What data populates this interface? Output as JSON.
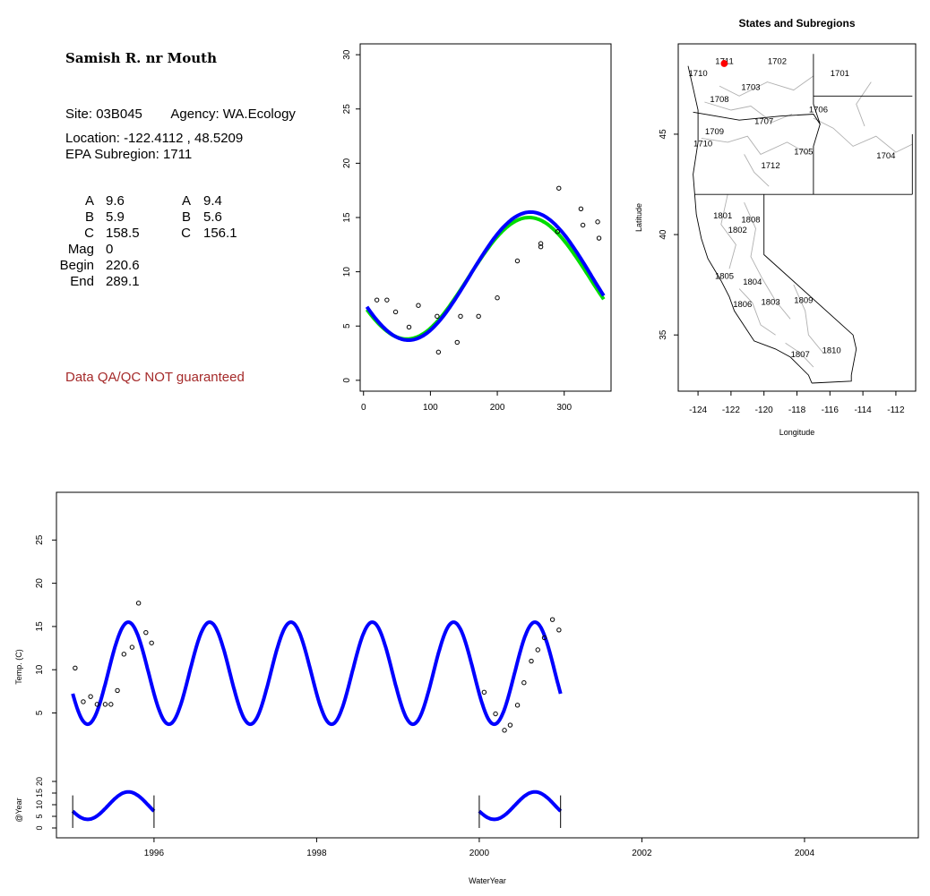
{
  "site": {
    "title": "Samish R. nr Mouth",
    "site_label": "Site:",
    "site_id": "03B045",
    "agency_label": "Agency:",
    "agency": "WA.Ecology",
    "location_label": "Location:",
    "location": "-122.4112 , 48.5209",
    "subregion_label": "EPA Subregion:",
    "subregion": "1711"
  },
  "coefficients": {
    "left": [
      {
        "label": "A",
        "value": "9.6"
      },
      {
        "label": "B",
        "value": "5.9"
      },
      {
        "label": "C",
        "value": "158.5"
      },
      {
        "label": "Mag",
        "value": "0"
      },
      {
        "label": "Begin",
        "value": "220.6"
      },
      {
        "label": "End",
        "value": "289.1"
      }
    ],
    "right": [
      {
        "label": "A",
        "value": "9.4"
      },
      {
        "label": "B",
        "value": "5.6"
      },
      {
        "label": "C",
        "value": "156.1"
      }
    ]
  },
  "qa_note": "Data QA/QC NOT guaranteed",
  "colors": {
    "fit_primary": "#0000ff",
    "fit_secondary": "#00dd00",
    "note": "#a52a2a",
    "site_marker": "#ff0000"
  },
  "chart_data": [
    {
      "type": "scatter",
      "name": "seasonal-fit",
      "xlim": [
        -5,
        370
      ],
      "ylim": [
        -1,
        31
      ],
      "x_ticks": [
        0,
        100,
        200,
        300
      ],
      "y_ticks": [
        0,
        5,
        10,
        15,
        20,
        25,
        30
      ],
      "points": [
        [
          20,
          7.4
        ],
        [
          35,
          7.4
        ],
        [
          48,
          6.3
        ],
        [
          68,
          4.9
        ],
        [
          82,
          6.9
        ],
        [
          110,
          5.9
        ],
        [
          112,
          2.6
        ],
        [
          140,
          3.5
        ],
        [
          145,
          5.9
        ],
        [
          172,
          5.9
        ],
        [
          200,
          7.6
        ],
        [
          230,
          11.0
        ],
        [
          265,
          12.6
        ],
        [
          265,
          12.3
        ],
        [
          290,
          13.7
        ],
        [
          292,
          17.7
        ],
        [
          325,
          15.8
        ],
        [
          328,
          14.3
        ],
        [
          350,
          14.6
        ],
        [
          352,
          13.1
        ]
      ],
      "series": [
        {
          "color": "#00dd00",
          "A": 9.4,
          "B": 5.6,
          "C": 156.1
        },
        {
          "color": "#0000ff",
          "A": 9.6,
          "B": 5.9,
          "C": 158.5
        }
      ],
      "fit_range": [
        5,
        360
      ]
    },
    {
      "type": "map",
      "title": "States and Subregions",
      "xlabel": "Longitude",
      "ylabel": "Latitude",
      "xlim": [
        -125.2,
        -110.8
      ],
      "ylim": [
        32.2,
        49.5
      ],
      "x_ticks": [
        -124,
        -122,
        -120,
        -118,
        -116,
        -114,
        -112
      ],
      "y_ticks": [
        35,
        40,
        45
      ],
      "site": [
        -122.4112,
        48.5209
      ],
      "region_labels": [
        {
          "label": "1702",
          "lon": -119.2,
          "lat": 48.5
        },
        {
          "label": "1701",
          "lon": -115.4,
          "lat": 47.9
        },
        {
          "label": "1711",
          "lon": -122.4,
          "lat": 48.5
        },
        {
          "label": "1710",
          "lon": -124.0,
          "lat": 47.9
        },
        {
          "label": "1703",
          "lon": -120.8,
          "lat": 47.2
        },
        {
          "label": "1708",
          "lon": -122.7,
          "lat": 46.6
        },
        {
          "label": "1706",
          "lon": -116.7,
          "lat": 46.1
        },
        {
          "label": "1707",
          "lon": -120.0,
          "lat": 45.5
        },
        {
          "label": "1709",
          "lon": -123.0,
          "lat": 45.0
        },
        {
          "label": "1710",
          "lon": -123.7,
          "lat": 44.4
        },
        {
          "label": "1705",
          "lon": -117.6,
          "lat": 44.0
        },
        {
          "label": "1704",
          "lon": -112.6,
          "lat": 43.8
        },
        {
          "label": "1712",
          "lon": -119.6,
          "lat": 43.3
        },
        {
          "label": "1801",
          "lon": -122.5,
          "lat": 40.8
        },
        {
          "label": "1808",
          "lon": -120.8,
          "lat": 40.6
        },
        {
          "label": "1802",
          "lon": -121.6,
          "lat": 40.1
        },
        {
          "label": "1805",
          "lon": -122.4,
          "lat": 37.8
        },
        {
          "label": "1804",
          "lon": -120.7,
          "lat": 37.5
        },
        {
          "label": "1806",
          "lon": -121.3,
          "lat": 36.4
        },
        {
          "label": "1803",
          "lon": -119.6,
          "lat": 36.5
        },
        {
          "label": "1809",
          "lon": -117.6,
          "lat": 36.6
        },
        {
          "label": "1807",
          "lon": -117.8,
          "lat": 33.9
        },
        {
          "label": "1810",
          "lon": -115.9,
          "lat": 34.1
        }
      ]
    },
    {
      "type": "scatter",
      "name": "time-series",
      "xlabel": "WaterYear",
      "ylabel": "Temp. (C)",
      "ylabel2": "@Year",
      "xlim": [
        1994.8,
        2005.4
      ],
      "ylim_main": [
        0.5,
        30
      ],
      "ylim_sub": [
        0,
        20
      ],
      "x_ticks": [
        1996,
        1998,
        2000,
        2002,
        2004
      ],
      "y_ticks_main": [
        5,
        10,
        15,
        20,
        25
      ],
      "y_ticks_sub": [
        0,
        5,
        10,
        15,
        20
      ],
      "fit_range": [
        1995.0,
        2001.0
      ],
      "fit": {
        "A": 9.6,
        "B": 5.9,
        "C": 158.5
      },
      "points": [
        [
          1995.03,
          10.2
        ],
        [
          1995.13,
          6.3
        ],
        [
          1995.22,
          6.9
        ],
        [
          1995.3,
          6.0
        ],
        [
          1995.4,
          6.0
        ],
        [
          1995.47,
          6.0
        ],
        [
          1995.55,
          7.6
        ],
        [
          1995.63,
          11.8
        ],
        [
          1995.73,
          12.6
        ],
        [
          1995.81,
          17.7
        ],
        [
          1995.9,
          14.3
        ],
        [
          1995.97,
          13.1
        ],
        [
          2000.06,
          7.4
        ],
        [
          2000.2,
          4.9
        ],
        [
          2000.31,
          3.0
        ],
        [
          2000.38,
          3.6
        ],
        [
          2000.47,
          5.9
        ],
        [
          2000.55,
          8.5
        ],
        [
          2000.64,
          11.0
        ],
        [
          2000.72,
          12.3
        ],
        [
          2000.8,
          13.7
        ],
        [
          2000.9,
          15.8
        ],
        [
          2000.98,
          14.6
        ]
      ],
      "sub_years": [
        [
          1995.0,
          1996.0
        ],
        [
          2000.0,
          2001.0
        ]
      ]
    }
  ]
}
